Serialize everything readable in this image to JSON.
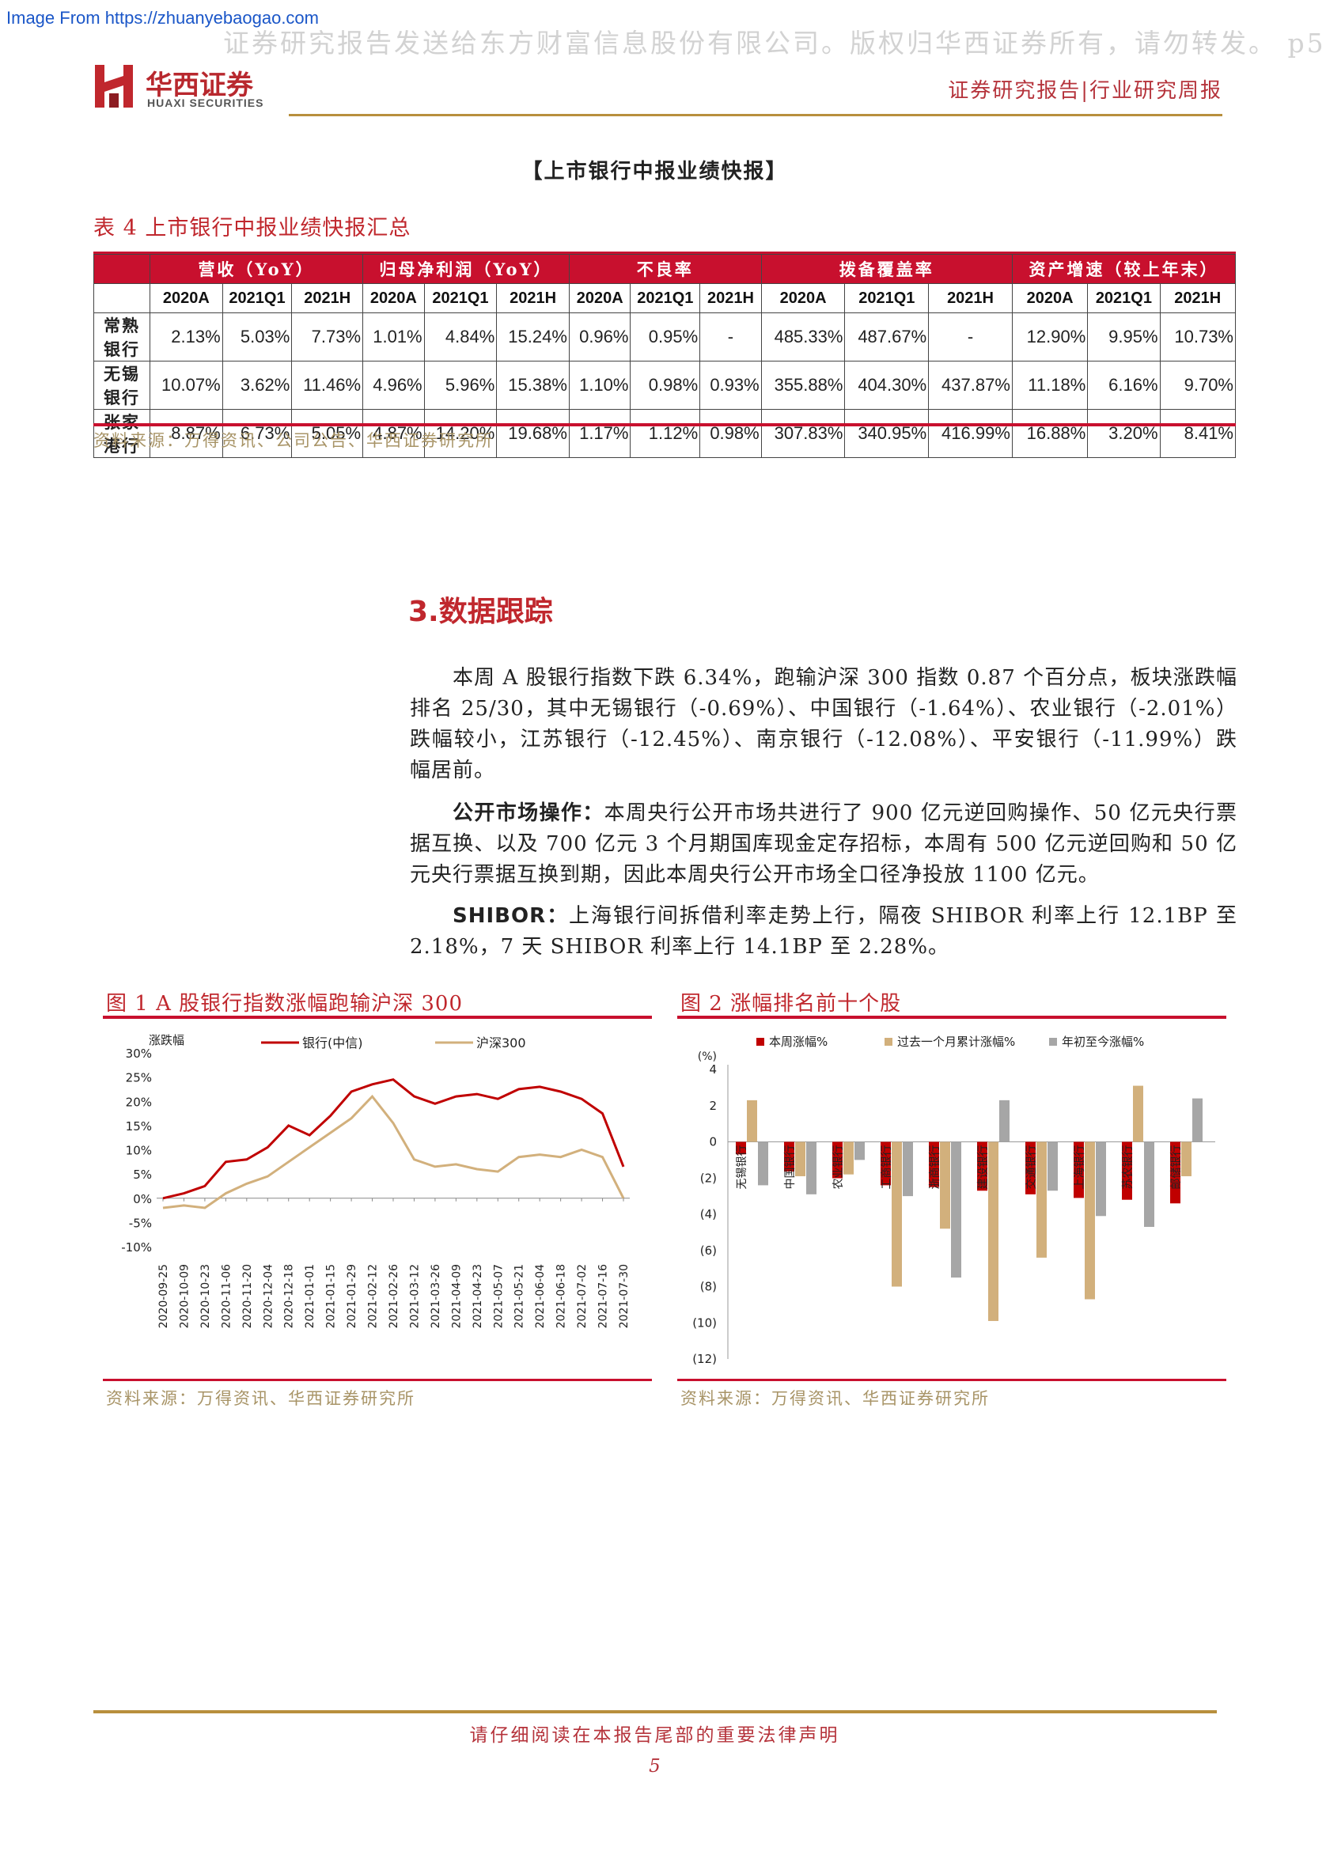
{
  "watermark": {
    "source": "Image From https://zhuanyebaogao.com",
    "top_text": "证券研究报告发送给东方财富信息股份有限公司。版权归华西证券所有，请勿转发。 p5"
  },
  "header": {
    "logo_cn": "华西证券",
    "logo_en": "HUAXI SECURITIES",
    "report_type": "证券研究报告|行业研究周报"
  },
  "section_title": "【上市银行中报业绩快报】",
  "table": {
    "caption": "表 4   上市银行中报业绩快报汇总",
    "groups": [
      "营收（YoY）",
      "归母净利润（YoY）",
      "不良率",
      "拨备覆盖率",
      "资产增速（较上年末）"
    ],
    "periods": [
      "2020A",
      "2021Q1",
      "2021H"
    ],
    "rows": [
      {
        "bank": "常熟银行",
        "values": [
          "2.13%",
          "5.03%",
          "7.73%",
          "1.01%",
          "4.84%",
          "15.24%",
          "0.96%",
          "0.95%",
          "-",
          "485.33%",
          "487.67%",
          "-",
          "12.90%",
          "9.95%",
          "10.73%"
        ]
      },
      {
        "bank": "无锡银行",
        "values": [
          "10.07%",
          "3.62%",
          "11.46%",
          "4.96%",
          "5.96%",
          "15.38%",
          "1.10%",
          "0.98%",
          "0.93%",
          "355.88%",
          "404.30%",
          "437.87%",
          "11.18%",
          "6.16%",
          "9.70%"
        ]
      },
      {
        "bank": "张家港行",
        "values": [
          "8.87%",
          "6.73%",
          "5.05%",
          "4.87%",
          "14.20%",
          "19.68%",
          "1.17%",
          "1.12%",
          "0.98%",
          "307.83%",
          "340.95%",
          "416.99%",
          "16.88%",
          "3.20%",
          "8.41%"
        ]
      }
    ],
    "source": "资料来源：万得资讯、公司公告、华西证券研究所"
  },
  "section3": {
    "heading": "3.数据跟踪",
    "p1": "本周 A 股银行指数下跌 6.34%，跑输沪深 300 指数 0.87 个百分点，板块涨跌幅排名 25/30，其中无锡银行（-0.69%）、中国银行（-1.64%）、农业银行（-2.01%）跌幅较小，江苏银行（-12.45%）、南京银行（-12.08%）、平安银行（-11.99%）跌幅居前。",
    "p2_lead": "公开市场操作：",
    "p2": "本周央行公开市场共进行了 900 亿元逆回购操作、50 亿元央行票据互换、以及 700 亿元 3 个月期国库现金定存招标，本周有 500 亿元逆回购和 50 亿元央行票据互换到期，因此本周央行公开市场全口径净投放 1100 亿元。",
    "p3_lead": "SHIBOR：",
    "p3": "上海银行间拆借利率走势上行，隔夜 SHIBOR 利率上行 12.1BP 至 2.18%，7 天 SHIBOR 利率上行 14.1BP 至 2.28%。"
  },
  "figure1": {
    "caption": "图 1   A 股银行指数涨幅跑输沪深 300",
    "source": "资料来源：万得资讯、华西证券研究所",
    "colors": {
      "bank": "#c00000",
      "hs300": "#d2b07c"
    }
  },
  "figure2": {
    "caption": "图 2   涨幅排名前十个股",
    "source": "资料来源：万得资讯、华西证券研究所",
    "colors": {
      "week": "#c00000",
      "month": "#d2b07c",
      "ytd": "#a6a6a6"
    }
  },
  "chart_data": [
    {
      "type": "line",
      "title": "",
      "ylabel": "涨跌幅",
      "ylim": [
        -10,
        30
      ],
      "yticks": [
        "30%",
        "25%",
        "20%",
        "15%",
        "10%",
        "5%",
        "0%",
        "-5%",
        "-10%"
      ],
      "x": [
        "2020-09-25",
        "2020-10-09",
        "2020-10-23",
        "2020-11-06",
        "2020-11-20",
        "2020-12-04",
        "2020-12-18",
        "2021-01-01",
        "2021-01-15",
        "2021-01-29",
        "2021-02-12",
        "2021-02-26",
        "2021-03-12",
        "2021-03-26",
        "2021-04-09",
        "2021-04-23",
        "2021-05-07",
        "2021-05-21",
        "2021-06-04",
        "2021-06-18",
        "2021-07-02",
        "2021-07-16",
        "2021-07-30"
      ],
      "series": [
        {
          "name": "银行(中信)",
          "values": [
            0,
            1.0,
            2.5,
            7.5,
            8.0,
            10.5,
            15.0,
            13.0,
            17.0,
            22.0,
            23.5,
            24.5,
            21.0,
            19.5,
            21.0,
            21.5,
            20.5,
            22.5,
            23.0,
            22.0,
            20.5,
            17.5,
            6.5
          ]
        },
        {
          "name": "沪深300",
          "values": [
            -2.0,
            -1.5,
            -2.0,
            1.0,
            3.0,
            4.5,
            7.5,
            10.5,
            13.5,
            16.5,
            21.0,
            15.5,
            8.0,
            6.5,
            7.0,
            6.0,
            5.5,
            8.5,
            9.0,
            8.5,
            10.0,
            8.5,
            0.0
          ]
        }
      ],
      "legend": "top"
    },
    {
      "type": "bar",
      "title": "",
      "ylabel": "(%)",
      "ylim": [
        -12,
        4
      ],
      "yticks": [
        "4",
        "2",
        "0",
        "(2)",
        "(4)",
        "(6)",
        "(8)",
        "(10)",
        "(12)"
      ],
      "categories": [
        "无锡银行",
        "中国银行",
        "农业银行",
        "工商银行",
        "浙商银行",
        "建设银行",
        "交通银行",
        "上海银行",
        "苏农银行",
        "邮储银行"
      ],
      "series": [
        {
          "name": "本周涨幅%",
          "values": [
            -0.69,
            -1.64,
            -2.01,
            -2.4,
            -2.5,
            -2.7,
            -2.9,
            -3.1,
            -3.2,
            -3.4
          ]
        },
        {
          "name": "过去一个月累计涨幅%",
          "values": [
            2.3,
            -1.9,
            -1.8,
            -8.0,
            -4.8,
            -9.9,
            -6.4,
            -8.7,
            3.1,
            -1.9
          ]
        },
        {
          "name": "年初至今涨幅%",
          "values": [
            -2.4,
            -2.9,
            -1.0,
            -3.0,
            -7.5,
            2.3,
            -2.7,
            -4.1,
            -4.7,
            2.4
          ]
        }
      ],
      "legend": "top"
    }
  ],
  "footer": {
    "notice": "请仔细阅读在本报告尾部的重要法律声明",
    "page": "5"
  }
}
